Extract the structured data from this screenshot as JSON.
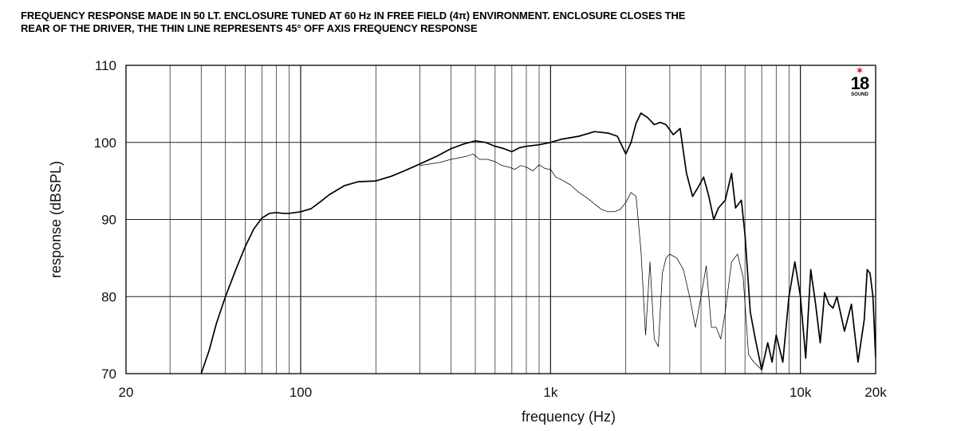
{
  "caption": {
    "line1": "FREQUENCY RESPONSE MADE IN 50 LT. ENCLOSURE TUNED AT 60 Hz IN FREE FIELD (4π) ENVIRONMENT. ENCLOSURE CLOSES THE",
    "line2": "REAR OF THE DRIVER, THE THIN LINE REPRESENTS 45° OFF AXIS FREQUENCY RESPONSE"
  },
  "logo": {
    "number": "18",
    "text": "SOUND"
  },
  "chart_data": {
    "type": "line",
    "xlabel": "frequency (Hz)",
    "ylabel": "response (dBSPL)",
    "xscale": "log",
    "xlim": [
      20,
      20000
    ],
    "ylim": [
      70,
      110
    ],
    "grid": true,
    "x_ticks": [
      {
        "value": 20,
        "label": "20"
      },
      {
        "value": 100,
        "label": "100"
      },
      {
        "value": 1000,
        "label": "1k"
      },
      {
        "value": 10000,
        "label": "10k"
      },
      {
        "value": 20000,
        "label": "20k"
      }
    ],
    "y_ticks": [
      {
        "value": 70,
        "label": "70"
      },
      {
        "value": 80,
        "label": "80"
      },
      {
        "value": 90,
        "label": "90"
      },
      {
        "value": 100,
        "label": "100"
      },
      {
        "value": 110,
        "label": "110"
      }
    ],
    "series": [
      {
        "style": "thick",
        "x": [
          40,
          43,
          46,
          50,
          55,
          60,
          65,
          70,
          75,
          80,
          85,
          90,
          100,
          110,
          120,
          130,
          150,
          170,
          200,
          230,
          260,
          300,
          350,
          400,
          450,
          500,
          550,
          600,
          650,
          700,
          750,
          800,
          900,
          1000,
          1100,
          1300,
          1500,
          1700,
          1850,
          2000,
          2100,
          2200,
          2300,
          2450,
          2600,
          2750,
          2900,
          3100,
          3300,
          3500,
          3700,
          3900,
          4100,
          4300,
          4500,
          4700,
          5000,
          5300,
          5500,
          5800,
          6000,
          6300,
          6600,
          7000,
          7400,
          7700,
          8000,
          8500,
          9000,
          9500,
          10000,
          10500,
          11000,
          11500,
          12000,
          12500,
          13000,
          13500,
          14000,
          15000,
          16000,
          17000,
          18000,
          18500,
          19000,
          19500,
          20000
        ],
        "y": [
          70,
          73,
          76.5,
          80,
          83.5,
          86.5,
          88.8,
          90.2,
          90.8,
          90.9,
          90.8,
          90.8,
          91.0,
          91.4,
          92.3,
          93.2,
          94.4,
          94.9,
          95.0,
          95.6,
          96.3,
          97.2,
          98.2,
          99.2,
          99.8,
          100.2,
          100.0,
          99.5,
          99.2,
          98.8,
          99.3,
          99.5,
          99.7,
          100.0,
          100.4,
          100.8,
          101.4,
          101.2,
          100.8,
          98.5,
          100.0,
          102.5,
          103.8,
          103.2,
          102.3,
          102.6,
          102.3,
          101.0,
          101.8,
          96.0,
          93.0,
          94.2,
          95.5,
          93.0,
          90.0,
          91.5,
          92.5,
          96.0,
          91.5,
          92.5,
          88.0,
          78.0,
          74.5,
          70.5,
          74.0,
          71.5,
          75.0,
          71.5,
          80.0,
          84.5,
          80.0,
          72.0,
          83.5,
          79.0,
          74.0,
          80.5,
          79.0,
          78.5,
          80.0,
          75.5,
          79.0,
          71.5,
          77.0,
          83.5,
          83.0,
          80.0,
          72.0
        ]
      },
      {
        "style": "thin",
        "x": [
          300,
          330,
          360,
          400,
          430,
          460,
          490,
          520,
          560,
          600,
          640,
          680,
          720,
          760,
          800,
          850,
          900,
          950,
          1000,
          1050,
          1100,
          1200,
          1300,
          1400,
          1500,
          1600,
          1700,
          1800,
          1900,
          2000,
          2100,
          2200,
          2300,
          2400,
          2500,
          2600,
          2700,
          2800,
          2900,
          3000,
          3200,
          3400,
          3600,
          3800,
          4000,
          4200,
          4400,
          4600,
          4800,
          5000,
          5300,
          5600,
          5900,
          6200,
          6500,
          7000
        ],
        "y": [
          97.0,
          97.2,
          97.4,
          97.8,
          98.0,
          98.2,
          98.5,
          97.8,
          97.8,
          97.5,
          97.0,
          96.8,
          96.5,
          97.0,
          96.8,
          96.3,
          97.1,
          96.6,
          96.5,
          95.5,
          95.2,
          94.5,
          93.5,
          92.8,
          92.0,
          91.3,
          91.0,
          91.0,
          91.3,
          92.2,
          93.5,
          93.0,
          86.0,
          75.0,
          84.5,
          74.5,
          73.5,
          83.0,
          85.0,
          85.5,
          85.0,
          83.5,
          80.0,
          76.0,
          80.0,
          84.0,
          76.0,
          76.0,
          74.5,
          78.0,
          84.5,
          85.5,
          82.5,
          72.5,
          71.5,
          70.5
        ]
      }
    ]
  }
}
